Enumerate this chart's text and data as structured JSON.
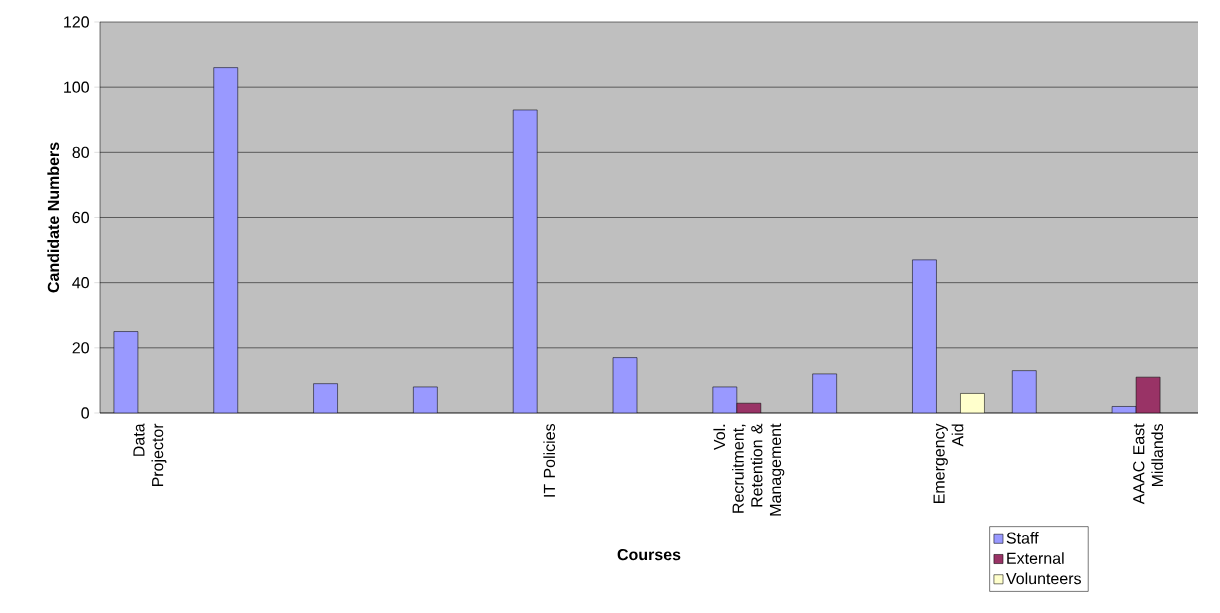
{
  "chart_data": {
    "type": "bar",
    "xlabel": "Courses",
    "ylabel": "Candidate Numbers",
    "categories": [
      "Data Projector",
      null,
      null,
      null,
      "IT Policies",
      null,
      "Vol. Recruitment, Retention & Management",
      null,
      "Emergency Aid",
      null,
      "AAAC East Midlands"
    ],
    "series": [
      {
        "name": "Staff",
        "color": "#9999ff",
        "values": [
          25,
          106,
          9,
          8,
          93,
          17,
          8,
          12,
          47,
          13,
          2
        ]
      },
      {
        "name": "External",
        "color": "#993366",
        "values": [
          null,
          null,
          null,
          null,
          null,
          null,
          3,
          null,
          null,
          null,
          11
        ]
      },
      {
        "name": "Volunteers",
        "color": "#ffffcc",
        "values": [
          null,
          null,
          null,
          null,
          null,
          null,
          null,
          null,
          6,
          null,
          null
        ]
      }
    ],
    "ylim": [
      0,
      120
    ],
    "yticks": [
      0,
      20,
      40,
      60,
      80,
      100,
      120
    ],
    "grid": "y",
    "legend": "bottom right"
  }
}
